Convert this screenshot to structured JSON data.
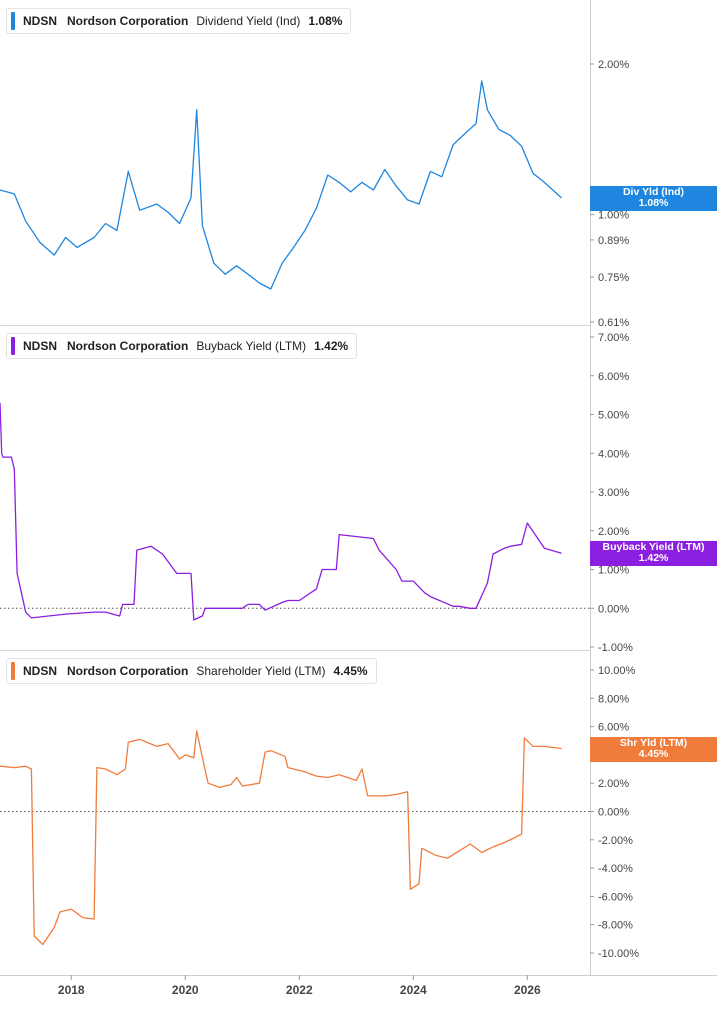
{
  "colors": {
    "dividend": "#1f86e0",
    "buyback": "#8a1fe0",
    "shareholder": "#f07c3c",
    "axis_text": "#444444",
    "grid_line": "#bbbbbb"
  },
  "x_axis": {
    "range": [
      2016.75,
      2027.1
    ],
    "ticks": [
      {
        "value": 2018,
        "label": "2018"
      },
      {
        "value": 2020,
        "label": "2020"
      },
      {
        "value": 2022,
        "label": "2022"
      },
      {
        "value": 2024,
        "label": "2024"
      },
      {
        "value": 2026,
        "label": "2026"
      }
    ]
  },
  "chart_data": [
    {
      "type": "line",
      "legend": {
        "symbol": "NDSN",
        "company": "Nordson Corporation",
        "metric": "Dividend Yield (Ind)",
        "value": "1.08%"
      },
      "badge": {
        "label": "Div Yld (Ind)",
        "value": "1.08%"
      },
      "color_key": "dividend",
      "y_scale": "log",
      "ylim": [
        0.61,
        2.4
      ],
      "y_ticks": [
        "2.00%",
        "1.00%",
        "0.89%",
        "0.75%",
        "0.61%"
      ],
      "y_tick_values": [
        2.0,
        1.0,
        0.89,
        0.75,
        0.61
      ],
      "series": [
        {
          "x": [
            2016.75,
            2017.0,
            2017.2,
            2017.45,
            2017.7,
            2017.9,
            2018.1,
            2018.4,
            2018.6,
            2018.8,
            2019.0,
            2019.2,
            2019.5,
            2019.7,
            2019.9,
            2020.1,
            2020.2,
            2020.3,
            2020.5,
            2020.7,
            2020.9,
            2021.1,
            2021.3,
            2021.5,
            2021.7,
            2021.9,
            2022.1,
            2022.3,
            2022.5,
            2022.7,
            2022.9,
            2023.1,
            2023.3,
            2023.5,
            2023.7,
            2023.9,
            2024.1,
            2024.3,
            2024.5,
            2024.7,
            2024.9,
            2025.1,
            2025.2,
            2025.3,
            2025.5,
            2025.7,
            2025.9,
            2026.1,
            2026.3,
            2026.6
          ],
          "y": [
            1.12,
            1.1,
            0.97,
            0.88,
            0.83,
            0.9,
            0.86,
            0.9,
            0.96,
            0.93,
            1.22,
            1.02,
            1.05,
            1.01,
            0.96,
            1.08,
            1.62,
            0.95,
            0.8,
            0.76,
            0.79,
            0.76,
            0.73,
            0.71,
            0.8,
            0.86,
            0.93,
            1.03,
            1.2,
            1.16,
            1.11,
            1.16,
            1.12,
            1.23,
            1.14,
            1.07,
            1.05,
            1.22,
            1.19,
            1.38,
            1.45,
            1.52,
            1.85,
            1.62,
            1.48,
            1.44,
            1.37,
            1.21,
            1.16,
            1.08
          ]
        }
      ]
    },
    {
      "type": "line",
      "legend": {
        "symbol": "NDSN",
        "company": "Nordson Corporation",
        "metric": "Buyback Yield (LTM)",
        "value": "1.42%"
      },
      "badge": {
        "label": "Buyback Yield (LTM)",
        "value": "1.42%"
      },
      "color_key": "buyback",
      "y_scale": "linear",
      "ylim": [
        -1.0,
        7.0
      ],
      "y_ticks": [
        "7.00%",
        "6.00%",
        "5.00%",
        "4.00%",
        "3.00%",
        "2.00%",
        "1.00%",
        "0.00%",
        "-1.00%"
      ],
      "y_tick_values": [
        7,
        6,
        5,
        4,
        3,
        2,
        1,
        0,
        -1
      ],
      "zero_line": true,
      "series": [
        {
          "x": [
            2016.75,
            2016.78,
            2016.8,
            2016.95,
            2017.0,
            2017.05,
            2017.2,
            2017.3,
            2017.6,
            2017.9,
            2018.4,
            2018.6,
            2018.85,
            2018.9,
            2019.1,
            2019.15,
            2019.4,
            2019.6,
            2019.8,
            2019.85,
            2020.1,
            2020.15,
            2020.3,
            2020.35,
            2020.6,
            2020.7,
            2021.0,
            2021.1,
            2021.3,
            2021.4,
            2021.7,
            2021.8,
            2022.0,
            2022.1,
            2022.3,
            2022.4,
            2022.65,
            2022.7,
            2023.3,
            2023.4,
            2023.7,
            2023.8,
            2024.0,
            2024.2,
            2024.3,
            2024.7,
            2024.8,
            2025.0,
            2025.1,
            2025.3,
            2025.4,
            2025.6,
            2025.7,
            2025.9,
            2026.0,
            2026.3,
            2026.6
          ],
          "y": [
            5.3,
            4.0,
            3.9,
            3.9,
            3.6,
            0.9,
            -0.1,
            -0.25,
            -0.2,
            -0.15,
            -0.1,
            -0.1,
            -0.2,
            0.1,
            0.1,
            1.5,
            1.6,
            1.4,
            1.0,
            0.9,
            0.9,
            -0.3,
            -0.2,
            0.0,
            0.0,
            0.0,
            0.0,
            0.1,
            0.1,
            -0.05,
            0.15,
            0.2,
            0.2,
            0.3,
            0.5,
            1.0,
            1.0,
            1.9,
            1.8,
            1.5,
            1.0,
            0.7,
            0.7,
            0.4,
            0.3,
            0.05,
            0.05,
            0.0,
            0.0,
            0.65,
            1.4,
            1.55,
            1.6,
            1.65,
            2.2,
            1.55,
            1.42
          ]
        }
      ]
    },
    {
      "type": "line",
      "legend": {
        "symbol": "NDSN",
        "company": "Nordson Corporation",
        "metric": "Shareholder Yield (LTM)",
        "value": "4.45%"
      },
      "badge": {
        "label": "Shr Yld (LTM)",
        "value": "4.45%"
      },
      "color_key": "shareholder",
      "y_scale": "linear",
      "ylim": [
        -10.0,
        10.0
      ],
      "y_ticks": [
        "10.00%",
        "8.00%",
        "6.00%",
        "4.00%",
        "2.00%",
        "0.00%",
        "-2.00%",
        "-4.00%",
        "-6.00%",
        "-8.00%",
        "-10.00%"
      ],
      "y_tick_values": [
        10,
        8,
        6,
        4,
        2,
        0,
        -2,
        -4,
        -6,
        -8,
        -10
      ],
      "zero_line": true,
      "series": [
        {
          "x": [
            2016.75,
            2017.0,
            2017.2,
            2017.3,
            2017.35,
            2017.5,
            2017.7,
            2017.8,
            2018.0,
            2018.2,
            2018.4,
            2018.45,
            2018.6,
            2018.8,
            2018.95,
            2019.0,
            2019.2,
            2019.5,
            2019.7,
            2019.9,
            2020.0,
            2020.15,
            2020.2,
            2020.35,
            2020.4,
            2020.6,
            2020.8,
            2020.9,
            2021.0,
            2021.3,
            2021.4,
            2021.5,
            2021.75,
            2021.8,
            2022.1,
            2022.3,
            2022.5,
            2022.7,
            2023.0,
            2023.1,
            2023.2,
            2023.5,
            2023.7,
            2023.9,
            2023.95,
            2024.1,
            2024.15,
            2024.4,
            2024.6,
            2024.8,
            2025.0,
            2025.2,
            2025.4,
            2025.6,
            2025.8,
            2025.9,
            2025.95,
            2026.1,
            2026.3,
            2026.6
          ],
          "y": [
            3.2,
            3.1,
            3.2,
            3.0,
            -8.8,
            -9.4,
            -8.2,
            -7.1,
            -6.9,
            -7.5,
            -7.6,
            3.1,
            3.0,
            2.6,
            3.0,
            4.9,
            5.1,
            4.6,
            4.8,
            3.7,
            4.0,
            3.8,
            5.7,
            2.9,
            2.0,
            1.7,
            1.9,
            2.4,
            1.8,
            2.0,
            4.2,
            4.3,
            3.9,
            3.1,
            2.8,
            2.5,
            2.4,
            2.6,
            2.2,
            3.0,
            1.1,
            1.1,
            1.2,
            1.4,
            -5.5,
            -5.1,
            -2.6,
            -3.1,
            -3.3,
            -2.8,
            -2.3,
            -2.9,
            -2.5,
            -2.2,
            -1.8,
            -1.6,
            5.2,
            4.6,
            4.6,
            4.45
          ]
        }
      ]
    }
  ]
}
